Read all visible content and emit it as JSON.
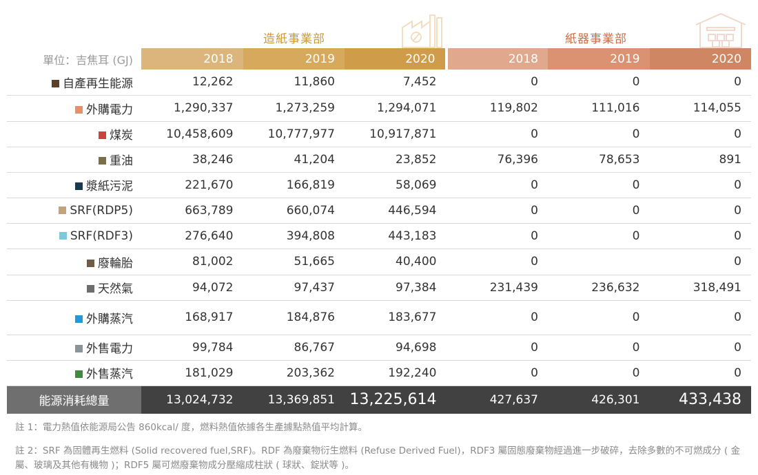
{
  "sections": {
    "paper": "造紙事業部",
    "box": "紙器事業部"
  },
  "header": {
    "unit_label": "單位：吉焦耳 (GJ)",
    "years": [
      "2018",
      "2019",
      "2020",
      "2018",
      "2019",
      "2020"
    ]
  },
  "rows": [
    {
      "label": "自產再生能源",
      "color": "#5c3f26",
      "values": [
        "12,262",
        "11,860",
        "7,452",
        "0",
        "0",
        "0"
      ]
    },
    {
      "label": "外購電力",
      "color": "#e6906a",
      "values": [
        "1,290,337",
        "1,273,259",
        "1,294,071",
        "119,802",
        "111,016",
        "114,055"
      ]
    },
    {
      "label": "煤炭",
      "color": "#c9443a",
      "values": [
        "10,458,609",
        "10,777,977",
        "10,917,871",
        "0",
        "0",
        "0"
      ]
    },
    {
      "label": "重油",
      "color": "#7a7048",
      "values": [
        "38,246",
        "41,204",
        "23,852",
        "76,396",
        "78,653",
        "891"
      ]
    },
    {
      "label": "漿紙污泥",
      "color": "#163a54",
      "values": [
        "221,670",
        "166,819",
        "58,069",
        "0",
        "0",
        "0"
      ]
    },
    {
      "label": "SRF(RDP5)",
      "color": "#c4a27a",
      "values": [
        "663,789",
        "660,074",
        "446,594",
        "0",
        "0",
        "0"
      ]
    },
    {
      "label": "SRF(RDF3)",
      "color": "#7ec8dc",
      "values": [
        "276,640",
        "394,808",
        "443,183",
        "0",
        "0",
        "0"
      ]
    },
    {
      "label": "廢輪胎",
      "color": "#6e5c47",
      "values": [
        "81,002",
        "51,665",
        "40,400",
        "0",
        "",
        "0"
      ]
    },
    {
      "label": "天然氣",
      "color": "#6d6d6d",
      "values": [
        "94,072",
        "97,437",
        "97,384",
        "231,439",
        "236,632",
        "318,491"
      ]
    },
    {
      "label": "外購蒸汽",
      "color": "#1f9ad9",
      "values": [
        "168,917",
        "184,876",
        "183,677",
        "0",
        "0",
        "0"
      ]
    },
    {
      "label": "外售電力",
      "color": "#8a959b",
      "values": [
        "99,784",
        "86,767",
        "94,698",
        "0",
        "0",
        "0"
      ]
    },
    {
      "label": "外售蒸汽",
      "color": "#3f8a3f",
      "values": [
        "181,029",
        "203,362",
        "192,240",
        "0",
        "0",
        "0"
      ]
    }
  ],
  "total": {
    "label": "能源消耗總量",
    "values": [
      "13,024,732",
      "13,369,851",
      "13,225,614",
      "427,637",
      "426,301",
      "433,438"
    ]
  },
  "notes": {
    "note1": "註 1：電力熱值依能源局公告 860kcal/ 度，燃料熱值依據各生產據點熱值平均計算。",
    "note2": "註 2：SRF 為固體再生燃料 (Solid recovered fuel,SRF)。RDF 為廢棄物衍生燃料 (Refuse Derived Fuel)，RDF3 屬固態廢棄物經過進一步破碎，去除多數的不可燃成分 ( 金屬、玻璃及其他有機物 )；RDF5 屬可燃廢棄物成分壓縮成柱狀 ( 球狀、錠狀等 )。"
  },
  "icons": {
    "paper": "factory-icon",
    "box": "warehouse-icon"
  }
}
